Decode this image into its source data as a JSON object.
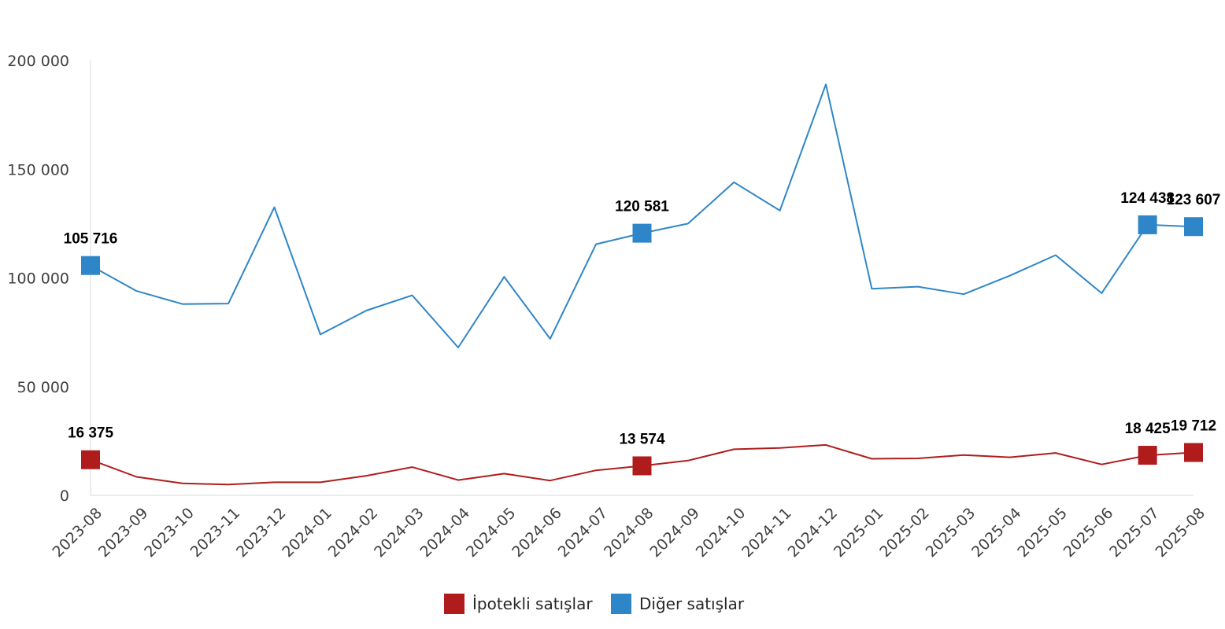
{
  "chart_data": {
    "type": "line",
    "categories": [
      "2023-08",
      "2023-09",
      "2023-10",
      "2023-11",
      "2023-12",
      "2024-01",
      "2024-02",
      "2024-03",
      "2024-04",
      "2024-05",
      "2024-06",
      "2024-07",
      "2024-08",
      "2024-09",
      "2024-10",
      "2024-11",
      "2024-12",
      "2025-01",
      "2025-02",
      "2025-03",
      "2025-04",
      "2025-05",
      "2025-06",
      "2025-07",
      "2025-08"
    ],
    "series": [
      {
        "name": "İpotekli satışlar",
        "color": "#b01c1c",
        "values": [
          16375,
          8500,
          5500,
          5000,
          6000,
          6000,
          9000,
          13000,
          7000,
          10000,
          6800,
          11500,
          13574,
          16000,
          21200,
          21800,
          23200,
          16800,
          17000,
          18500,
          17500,
          19500,
          14200,
          18425,
          19712
        ],
        "labels": [
          {
            "index": 0,
            "text": "16 375"
          },
          {
            "index": 12,
            "text": "13 574"
          },
          {
            "index": 23,
            "text": "18 425"
          },
          {
            "index": 24,
            "text": "19 712"
          }
        ]
      },
      {
        "name": "Diğer satışlar",
        "color": "#2e86c8",
        "values": [
          105716,
          94000,
          88000,
          88200,
          132500,
          74000,
          85000,
          92000,
          68000,
          100500,
          72000,
          115500,
          120581,
          125000,
          144000,
          131000,
          189000,
          95000,
          96000,
          92500,
          101000,
          110500,
          93000,
          124438,
          123607
        ],
        "labels": [
          {
            "index": 0,
            "text": "105 716"
          },
          {
            "index": 12,
            "text": "120 581"
          },
          {
            "index": 23,
            "text": "124 438"
          },
          {
            "index": 24,
            "text": "123 607"
          }
        ]
      }
    ],
    "yticks": [
      {
        "value": 0,
        "label": "0"
      },
      {
        "value": 50000,
        "label": "50 000"
      },
      {
        "value": 100000,
        "label": "100 000"
      },
      {
        "value": 150000,
        "label": "150 000"
      },
      {
        "value": 200000,
        "label": "200 000"
      }
    ],
    "ylim": [
      0,
      200000
    ],
    "grid": false,
    "legend_position": "bottom-center",
    "title": "",
    "xlabel": "",
    "ylabel": ""
  }
}
